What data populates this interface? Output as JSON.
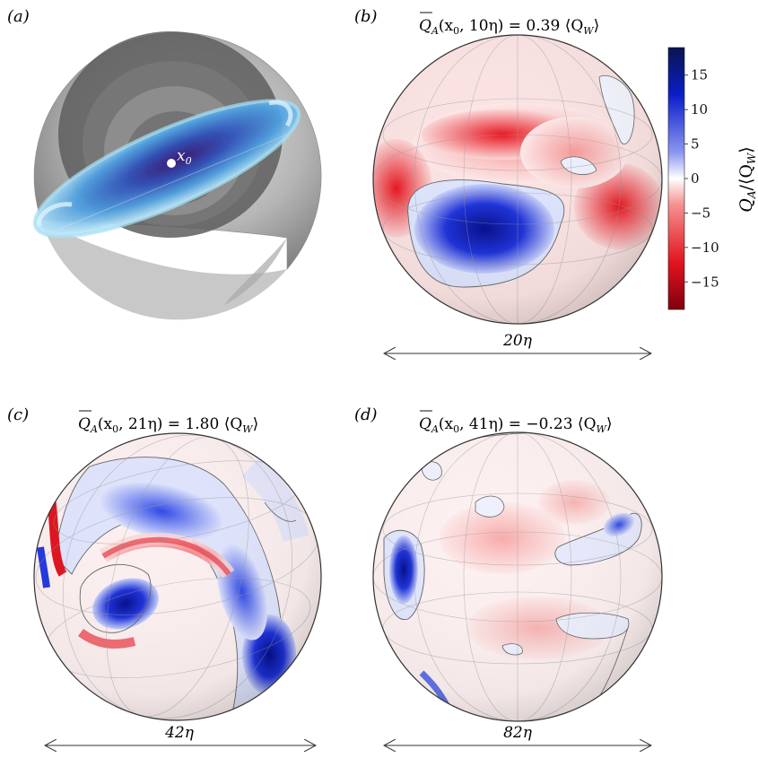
{
  "panels": {
    "a": {
      "label": "(a)",
      "point_label": "x",
      "point_sub": "0"
    },
    "b": {
      "label": "(b)",
      "title": "Q̄A(x0, 10η) = 0.39 ⟨QW⟩",
      "title_parts": {
        "lhs": "Q",
        "sub": "A",
        "args": "(x",
        "args_sub": "0",
        "args_rest": ", 10η) = 0.39 ⟨Q",
        "w_sub": "W",
        "close": "⟩"
      },
      "scale_label": "20η"
    },
    "c": {
      "label": "(c)",
      "title": "Q̄A(x0, 21η) = 1.80 ⟨QW⟩",
      "title_parts": {
        "lhs": "Q",
        "sub": "A",
        "args": "(x",
        "args_sub": "0",
        "args_rest": ", 21η) = 1.80 ⟨Q",
        "w_sub": "W",
        "close": "⟩"
      },
      "scale_label": "42η"
    },
    "d": {
      "label": "(d)",
      "title": "Q̄A(x0, 41η) = −0.23 ⟨QW⟩",
      "title_parts": {
        "lhs": "Q",
        "sub": "A",
        "args": "(x",
        "args_sub": "0",
        "args_rest": ", 41η) = −0.23 ⟨Q",
        "w_sub": "W",
        "close": "⟩"
      },
      "scale_label": "82η"
    }
  },
  "colorbar": {
    "ticks": [
      "15",
      "10",
      "5",
      "0",
      "−5",
      "−10",
      "−15"
    ],
    "tick_values": [
      15,
      10,
      5,
      0,
      -5,
      -10,
      -15
    ],
    "range": [
      -19,
      19
    ],
    "label_main": "Q",
    "label_sub": "A",
    "label_rest": "/⟨Q",
    "label_sub2": "W",
    "label_close": "⟩",
    "colors": {
      "neg": "#7a0010",
      "mid": "#ffffff",
      "pos": "#08104f"
    }
  }
}
